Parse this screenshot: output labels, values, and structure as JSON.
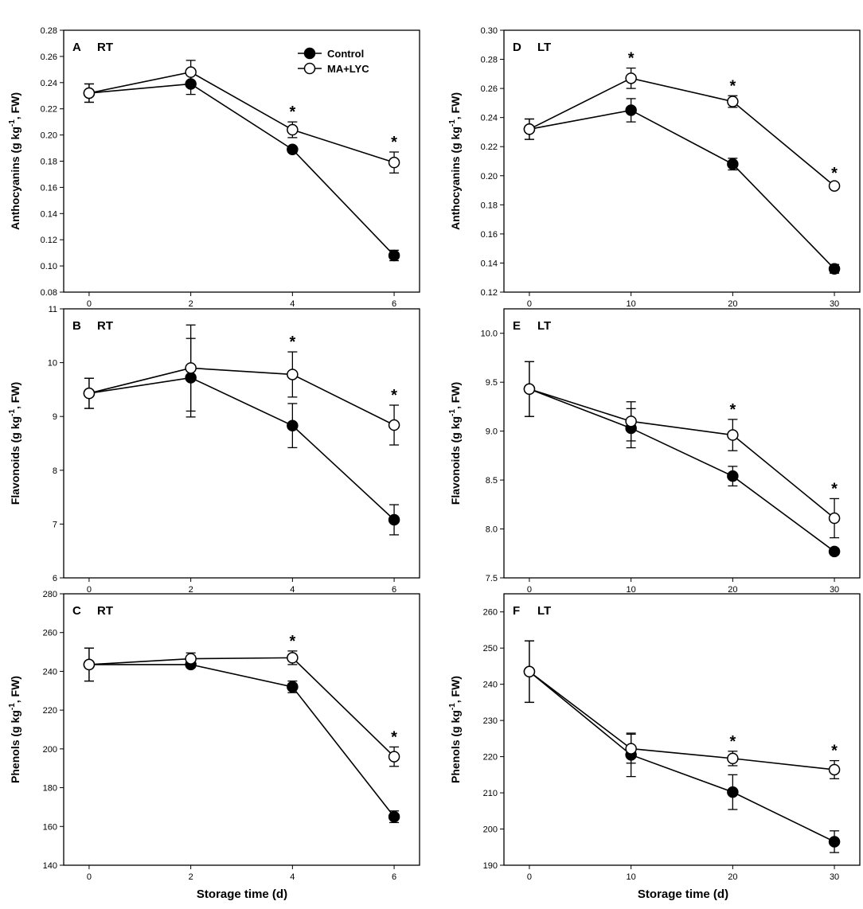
{
  "figure": {
    "x_axis_title": "Storage time (d)",
    "series_names": [
      "Control",
      "MA+LYC"
    ]
  },
  "legend": {
    "control": "Control",
    "malyc": "MA+LYC"
  },
  "chart_data": [
    {
      "id": "A",
      "letter": "A",
      "condition": "RT",
      "type": "line",
      "ylabel": "Anthocyanins (g kg-1, FW)",
      "ylabel_parts": [
        "Anthocyanins (g kg",
        "-1",
        ", FW)"
      ],
      "x": [
        0,
        2,
        4,
        6
      ],
      "xlim": [
        -0.5,
        6.5
      ],
      "xticks": [
        0,
        2,
        4,
        6
      ],
      "ylim": [
        0.08,
        0.28
      ],
      "yticks": [
        0.08,
        0.1,
        0.12,
        0.14,
        0.16,
        0.18,
        0.2,
        0.22,
        0.24,
        0.26,
        0.28
      ],
      "ytick_decimals": 2,
      "series": [
        {
          "name": "Control",
          "values": [
            0.232,
            0.239,
            0.189,
            0.108
          ],
          "errors": [
            0.007,
            0.008,
            0.002,
            0.004
          ]
        },
        {
          "name": "MA+LYC",
          "values": [
            0.232,
            0.248,
            0.204,
            0.179
          ],
          "errors": [
            0.007,
            0.009,
            0.006,
            0.008
          ]
        }
      ],
      "significance_labels": [
        "",
        "",
        "*",
        "*"
      ],
      "show_legend": true
    },
    {
      "id": "D",
      "letter": "D",
      "condition": "LT",
      "type": "line",
      "ylabel": "Anthocyanins (g kg-1, FW)",
      "ylabel_parts": [
        "Anthocyanins (g kg",
        "-1",
        ", FW)"
      ],
      "x": [
        0,
        10,
        20,
        30
      ],
      "xlim": [
        -2.5,
        32.5
      ],
      "xticks": [
        0,
        10,
        20,
        30
      ],
      "ylim": [
        0.12,
        0.3
      ],
      "yticks": [
        0.12,
        0.14,
        0.16,
        0.18,
        0.2,
        0.22,
        0.24,
        0.26,
        0.28,
        0.3
      ],
      "ytick_decimals": 2,
      "series": [
        {
          "name": "Control",
          "values": [
            0.232,
            0.245,
            0.208,
            0.136
          ],
          "errors": [
            0.007,
            0.008,
            0.004,
            0.003
          ]
        },
        {
          "name": "MA+LYC",
          "values": [
            0.232,
            0.267,
            0.251,
            0.193
          ],
          "errors": [
            0.007,
            0.007,
            0.004,
            0.002
          ]
        }
      ],
      "significance_labels": [
        "",
        "*",
        "*",
        "*"
      ],
      "show_legend": false
    },
    {
      "id": "B",
      "letter": "B",
      "condition": "RT",
      "type": "line",
      "ylabel": "Flavonoids (g kg-1, FW)",
      "ylabel_parts": [
        "Flavonoids (g kg",
        "-1",
        ", FW)"
      ],
      "x": [
        0,
        2,
        4,
        6
      ],
      "xlim": [
        -0.5,
        6.5
      ],
      "xticks": [
        0,
        2,
        4,
        6
      ],
      "ylim": [
        6,
        11
      ],
      "yticks": [
        6,
        7,
        8,
        9,
        10,
        11
      ],
      "ytick_decimals": 0,
      "series": [
        {
          "name": "Control",
          "values": [
            9.43,
            9.72,
            8.83,
            7.08
          ],
          "errors": [
            0.28,
            0.73,
            0.41,
            0.28
          ]
        },
        {
          "name": "MA+LYC",
          "values": [
            9.43,
            9.9,
            9.78,
            8.84
          ],
          "errors": [
            0.28,
            0.8,
            0.42,
            0.37
          ]
        }
      ],
      "significance_labels": [
        "",
        "",
        "*",
        "*"
      ],
      "show_legend": false
    },
    {
      "id": "E",
      "letter": "E",
      "condition": "LT",
      "type": "line",
      "ylabel": "Flavonoids (g kg-1, FW)",
      "ylabel_parts": [
        "Flavonoids (g kg",
        "-1",
        ", FW)"
      ],
      "x": [
        0,
        10,
        20,
        30
      ],
      "xlim": [
        -2.5,
        32.5
      ],
      "xticks": [
        0,
        10,
        20,
        30
      ],
      "ylim": [
        7.5,
        10.25
      ],
      "yticks": [
        7.5,
        8.0,
        8.5,
        9.0,
        9.5,
        10.0
      ],
      "ytick_decimals": 1,
      "series": [
        {
          "name": "Control",
          "values": [
            9.43,
            9.03,
            8.54,
            7.77
          ],
          "errors": [
            0.28,
            0.2,
            0.1,
            0.03
          ]
        },
        {
          "name": "MA+LYC",
          "values": [
            9.43,
            9.1,
            8.96,
            8.11
          ],
          "errors": [
            0.28,
            0.2,
            0.16,
            0.2
          ]
        }
      ],
      "significance_labels": [
        "",
        "",
        "*",
        "*"
      ],
      "show_legend": false
    },
    {
      "id": "C",
      "letter": "C",
      "condition": "RT",
      "type": "line",
      "ylabel": "Phenols (g kg-1, FW)",
      "ylabel_parts": [
        "Phenols (g kg",
        "-1",
        ", FW)"
      ],
      "x": [
        0,
        2,
        4,
        6
      ],
      "xlim": [
        -0.5,
        6.5
      ],
      "xticks": [
        0,
        2,
        4,
        6
      ],
      "ylim": [
        140,
        280
      ],
      "yticks": [
        140,
        160,
        180,
        200,
        220,
        240,
        260,
        280
      ],
      "ytick_decimals": 0,
      "series": [
        {
          "name": "Control",
          "values": [
            243.5,
            243.5,
            232.0,
            165.0
          ],
          "errors": [
            8.5,
            1.5,
            3.0,
            3.0
          ]
        },
        {
          "name": "MA+LYC",
          "values": [
            243.5,
            246.5,
            247.0,
            196.0
          ],
          "errors": [
            8.5,
            3.0,
            3.5,
            5.0
          ]
        }
      ],
      "significance_labels": [
        "",
        "",
        "*",
        "*"
      ],
      "show_legend": false
    },
    {
      "id": "F",
      "letter": "F",
      "condition": "LT",
      "type": "line",
      "ylabel": "Phenols (g kg-1, FW)",
      "ylabel_parts": [
        "Phenols (g kg",
        "-1",
        ", FW)"
      ],
      "x": [
        0,
        10,
        20,
        30
      ],
      "xlim": [
        -2.5,
        32.5
      ],
      "xticks": [
        0,
        10,
        20,
        30
      ],
      "ylim": [
        190,
        265
      ],
      "yticks": [
        190,
        200,
        210,
        220,
        230,
        240,
        250,
        260
      ],
      "ytick_decimals": 0,
      "series": [
        {
          "name": "Control",
          "values": [
            243.5,
            220.5,
            210.2,
            196.5
          ],
          "errors": [
            8.5,
            6.0,
            4.8,
            3.0
          ]
        },
        {
          "name": "MA+LYC",
          "values": [
            243.5,
            222.2,
            219.5,
            216.4
          ],
          "errors": [
            8.5,
            4.0,
            2.0,
            2.5
          ]
        }
      ],
      "significance_labels": [
        "",
        "",
        "*",
        "*"
      ],
      "show_legend": false
    }
  ]
}
